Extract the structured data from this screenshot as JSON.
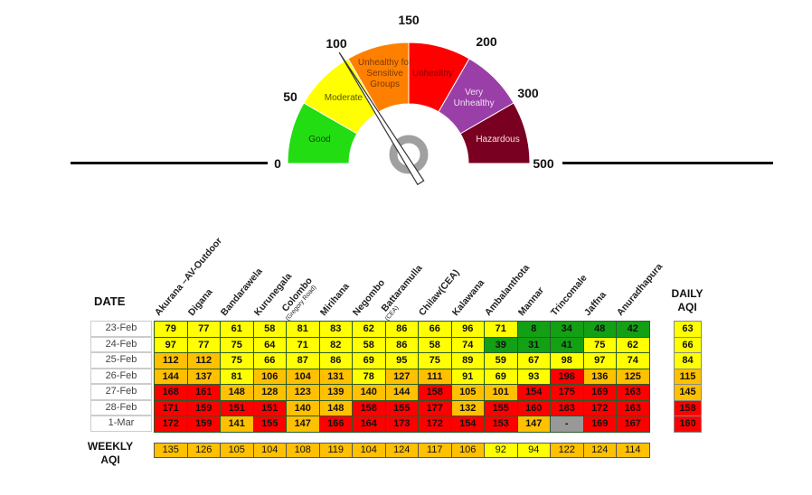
{
  "gauge": {
    "ticks": [
      "0",
      "50",
      "100",
      "150",
      "200",
      "300",
      "500"
    ],
    "categories": [
      {
        "label": "Good",
        "color": "#22dd11",
        "text_color": "#114411"
      },
      {
        "label": "Moderate",
        "color": "#ffff00",
        "text_color": "#555500"
      },
      {
        "label": "Unhealthy for Sensitive Groups",
        "color": "#ff8000",
        "text_color": "#7a3a00"
      },
      {
        "label": "Unhealthy",
        "color": "#ff0000",
        "text_color": "#8a0000"
      },
      {
        "label": "Very Unhealthy",
        "color": "#9b3fa8",
        "text_color": "#f0e0f4"
      },
      {
        "label": "Hazardous",
        "color": "#7a0022",
        "text_color": "#f4e0e4"
      }
    ],
    "needle_value": 100
  },
  "chart_data": {
    "type": "table",
    "row_header_title": "DATE",
    "daily_title": "DAILY AQI",
    "weekly_title": "WEEKLY AQI",
    "stations": [
      {
        "name": "Akurana –AV-Outdoor"
      },
      {
        "name": "Digana"
      },
      {
        "name": "Bandarawela"
      },
      {
        "name": "Kurunegala"
      },
      {
        "name": "Colombo",
        "sub": "(Gregory Road)"
      },
      {
        "name": "Mirihana"
      },
      {
        "name": "Negombo"
      },
      {
        "name": "Battaramulla",
        "sub": "(CEA)"
      },
      {
        "name": "Chilaw(CEA)"
      },
      {
        "name": "Kalawana"
      },
      {
        "name": "Ambalanthota"
      },
      {
        "name": "Mannar"
      },
      {
        "name": "Trincomale"
      },
      {
        "name": "Jaffna"
      },
      {
        "name": "Anuradhapura"
      }
    ],
    "dates": [
      "23-Feb",
      "24-Feb",
      "25-Feb",
      "26-Feb",
      "27-Feb",
      "28-Feb",
      "1-Mar"
    ],
    "values": [
      [
        "79",
        "77",
        "61",
        "58",
        "81",
        "83",
        "62",
        "86",
        "66",
        "96",
        "71",
        "8",
        "34",
        "48",
        "42"
      ],
      [
        "97",
        "77",
        "75",
        "64",
        "71",
        "82",
        "58",
        "86",
        "58",
        "74",
        "39",
        "31",
        "41",
        "75",
        "62"
      ],
      [
        "112",
        "112",
        "75",
        "66",
        "87",
        "86",
        "69",
        "95",
        "75",
        "89",
        "59",
        "67",
        "98",
        "97",
        "74"
      ],
      [
        "144",
        "137",
        "81",
        "106",
        "104",
        "131",
        "78",
        "127",
        "111",
        "91",
        "69",
        "93",
        "198",
        "136",
        "125"
      ],
      [
        "168",
        "161",
        "148",
        "128",
        "123",
        "139",
        "140",
        "144",
        "158",
        "105",
        "101",
        "154",
        "175",
        "169",
        "163"
      ],
      [
        "171",
        "159",
        "151",
        "151",
        "140",
        "148",
        "158",
        "155",
        "177",
        "132",
        "155",
        "160",
        "183",
        "172",
        "163"
      ],
      [
        "172",
        "159",
        "141",
        "155",
        "147",
        "166",
        "164",
        "173",
        "172",
        "154",
        "153",
        "147",
        "-",
        "169",
        "167"
      ]
    ],
    "daily_aqi": [
      "63",
      "66",
      "84",
      "115",
      "145",
      "158",
      "160"
    ],
    "weekly_aqi": [
      "135",
      "126",
      "105",
      "104",
      "108",
      "119",
      "104",
      "124",
      "117",
      "106",
      "92",
      "94",
      "122",
      "124",
      "114"
    ],
    "colors": {
      "good": "#14a014",
      "moderate": "#ffff00",
      "usg": "#ffc000",
      "unhealthy": "#ff0000",
      "missing": "#999999"
    }
  }
}
